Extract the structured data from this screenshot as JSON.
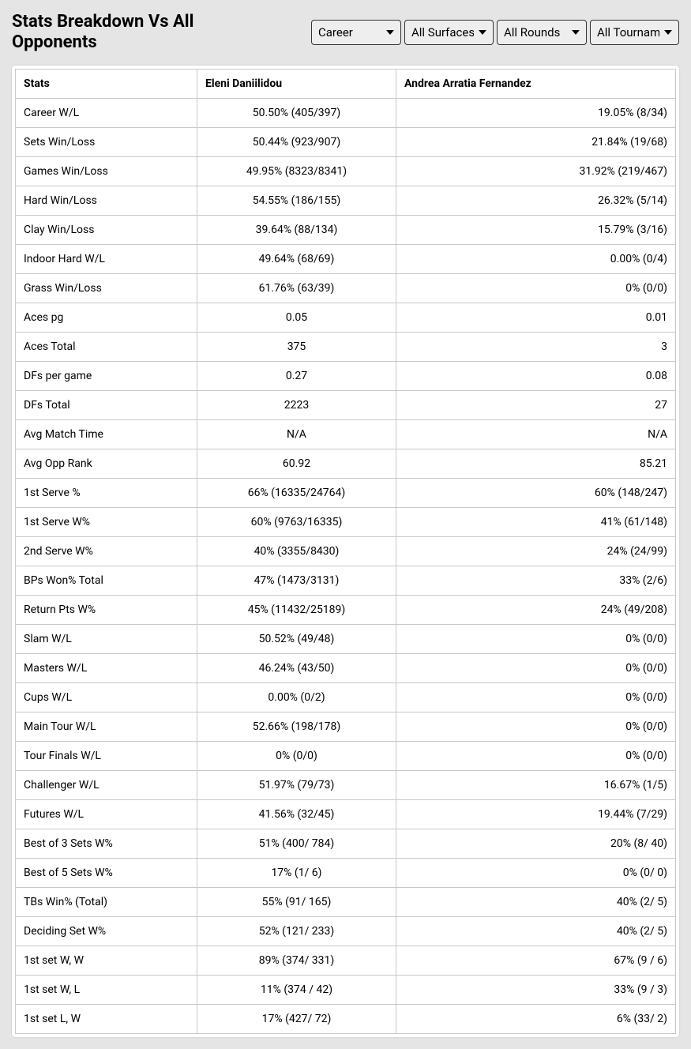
{
  "title": "Stats Breakdown Vs All Opponents",
  "filters": {
    "career": "Career",
    "surface": "All Surfaces",
    "rounds": "All Rounds",
    "tournaments": "All Tournaments"
  },
  "columns": [
    "Stats",
    "Eleni Daniilidou",
    "Andrea Arratia Fernandez"
  ],
  "rows": [
    [
      "Career W/L",
      "50.50% (405/397)",
      "19.05% (8/34)"
    ],
    [
      "Sets Win/Loss",
      "50.44% (923/907)",
      "21.84% (19/68)"
    ],
    [
      "Games Win/Loss",
      "49.95% (8323/8341)",
      "31.92% (219/467)"
    ],
    [
      "Hard Win/Loss",
      "54.55% (186/155)",
      "26.32% (5/14)"
    ],
    [
      "Clay Win/Loss",
      "39.64% (88/134)",
      "15.79% (3/16)"
    ],
    [
      "Indoor Hard W/L",
      "49.64% (68/69)",
      "0.00% (0/4)"
    ],
    [
      "Grass Win/Loss",
      "61.76% (63/39)",
      "0% (0/0)"
    ],
    [
      "Aces pg",
      "0.05",
      "0.01"
    ],
    [
      "Aces Total",
      "375",
      "3"
    ],
    [
      "DFs per game",
      "0.27",
      "0.08"
    ],
    [
      "DFs Total",
      "2223",
      "27"
    ],
    [
      "Avg Match Time",
      "N/A",
      "N/A"
    ],
    [
      "Avg Opp Rank",
      "60.92",
      "85.21"
    ],
    [
      "1st Serve %",
      "66% (16335/24764)",
      "60% (148/247)"
    ],
    [
      "1st Serve W%",
      "60% (9763/16335)",
      "41% (61/148)"
    ],
    [
      "2nd Serve W%",
      "40% (3355/8430)",
      "24% (24/99)"
    ],
    [
      "BPs Won% Total",
      "47% (1473/3131)",
      "33% (2/6)"
    ],
    [
      "Return Pts W%",
      "45% (11432/25189)",
      "24% (49/208)"
    ],
    [
      "Slam W/L",
      "50.52% (49/48)",
      "0% (0/0)"
    ],
    [
      "Masters W/L",
      "46.24% (43/50)",
      "0% (0/0)"
    ],
    [
      "Cups W/L",
      "0.00% (0/2)",
      "0% (0/0)"
    ],
    [
      "Main Tour W/L",
      "52.66% (198/178)",
      "0% (0/0)"
    ],
    [
      "Tour Finals W/L",
      "0% (0/0)",
      "0% (0/0)"
    ],
    [
      "Challenger W/L",
      "51.97% (79/73)",
      "16.67% (1/5)"
    ],
    [
      "Futures W/L",
      "41.56% (32/45)",
      "19.44% (7/29)"
    ],
    [
      "Best of 3 Sets W%",
      "51% (400/ 784)",
      "20% (8/ 40)"
    ],
    [
      "Best of 5 Sets W%",
      "17% (1/ 6)",
      "0% (0/ 0)"
    ],
    [
      "TBs Win% (Total)",
      "55% (91/ 165)",
      "40% (2/ 5)"
    ],
    [
      "Deciding Set W%",
      "52% (121/ 233)",
      "40% (2/ 5)"
    ],
    [
      "1st set W, W",
      "89% (374/ 331)",
      "67% (9 / 6)"
    ],
    [
      "1st set W, L",
      "11% (374 / 42)",
      "33% (9 / 3)"
    ],
    [
      "1st set L, W",
      "17% (427/ 72)",
      "6% (33/ 2)"
    ]
  ]
}
